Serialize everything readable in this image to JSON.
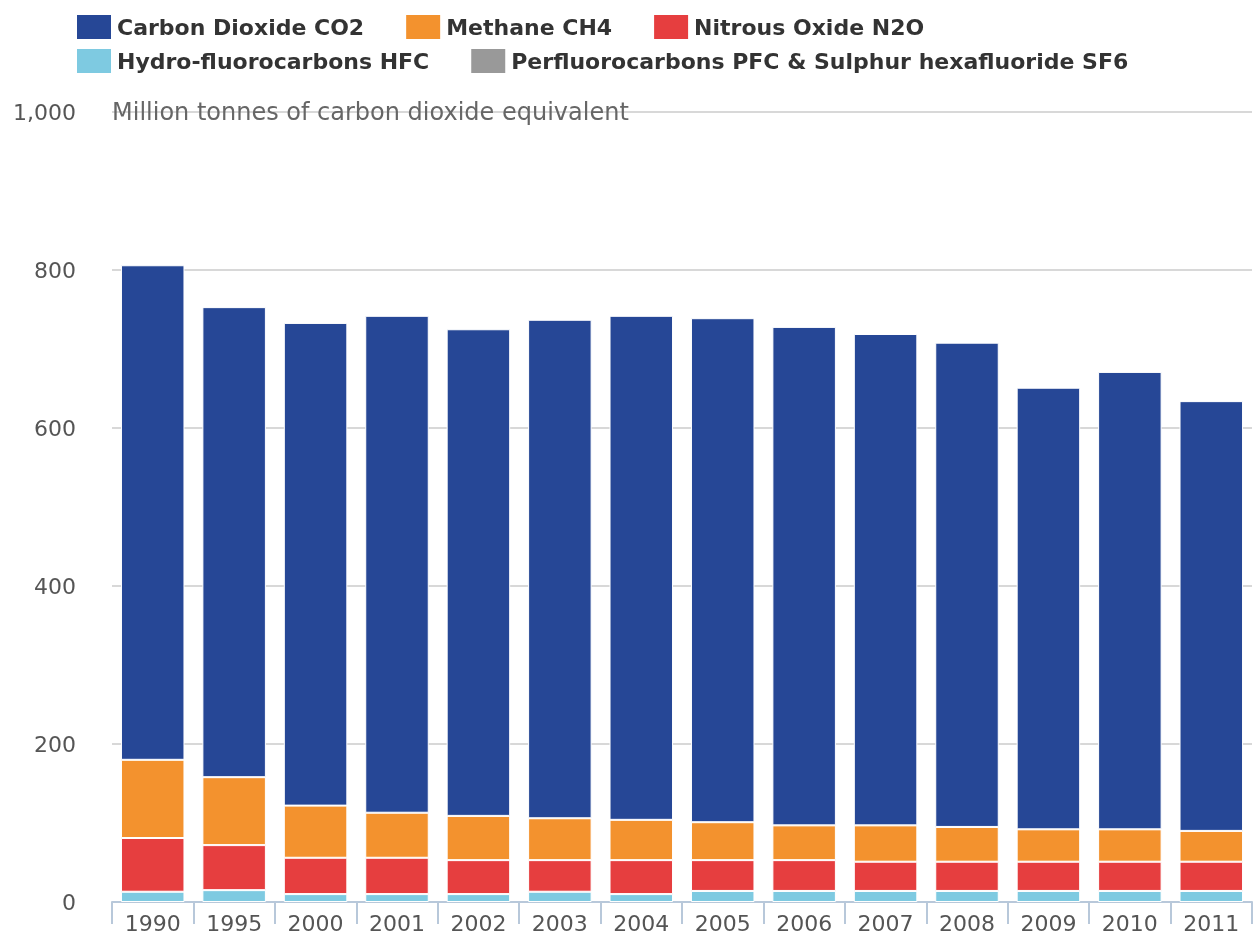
{
  "chart_data": {
    "type": "bar",
    "stacked": true,
    "ylabel": "Million tonnes of carbon dioxide equivalent",
    "categories": [
      "1990",
      "1995",
      "2000",
      "2001",
      "2002",
      "2003",
      "2004",
      "2005",
      "2006",
      "2007",
      "2008",
      "2009",
      "2010",
      "2011"
    ],
    "series": [
      {
        "name": "Perfluorocarbons PFC & Sulphur hexafluoride SF6",
        "color": "#999999",
        "values": [
          null,
          null,
          null,
          null,
          null,
          null,
          null,
          null,
          null,
          null,
          null,
          null,
          null,
          null
        ]
      },
      {
        "name": "Hydro-fluorocarbons HFC",
        "color": "#7ecae1",
        "values": [
          13,
          15,
          10,
          10,
          10,
          13,
          10,
          14,
          14,
          14,
          14,
          14,
          14,
          14
        ]
      },
      {
        "name": "Nitrous Oxide N2O",
        "color": "#e63e3f",
        "values": [
          68,
          57,
          46,
          46,
          43,
          40,
          43,
          39,
          39,
          37,
          37,
          37,
          37,
          37
        ]
      },
      {
        "name": "Methane CH4",
        "color": "#f3922e",
        "values": [
          99,
          86,
          66,
          57,
          56,
          53,
          51,
          48,
          44,
          46,
          44,
          41,
          41,
          39
        ]
      },
      {
        "name": "Carbon Dioxide CO2",
        "color": "#264796",
        "values": [
          626,
          595,
          611,
          629,
          616,
          631,
          638,
          638,
          631,
          622,
          613,
          559,
          579,
          544
        ]
      }
    ],
    "ylim": [
      0,
      1000
    ],
    "yticks": [
      0,
      200,
      400,
      600,
      800,
      {
        "value": 1000,
        "label": "1,000"
      }
    ],
    "grid": "y",
    "legend": "top"
  }
}
